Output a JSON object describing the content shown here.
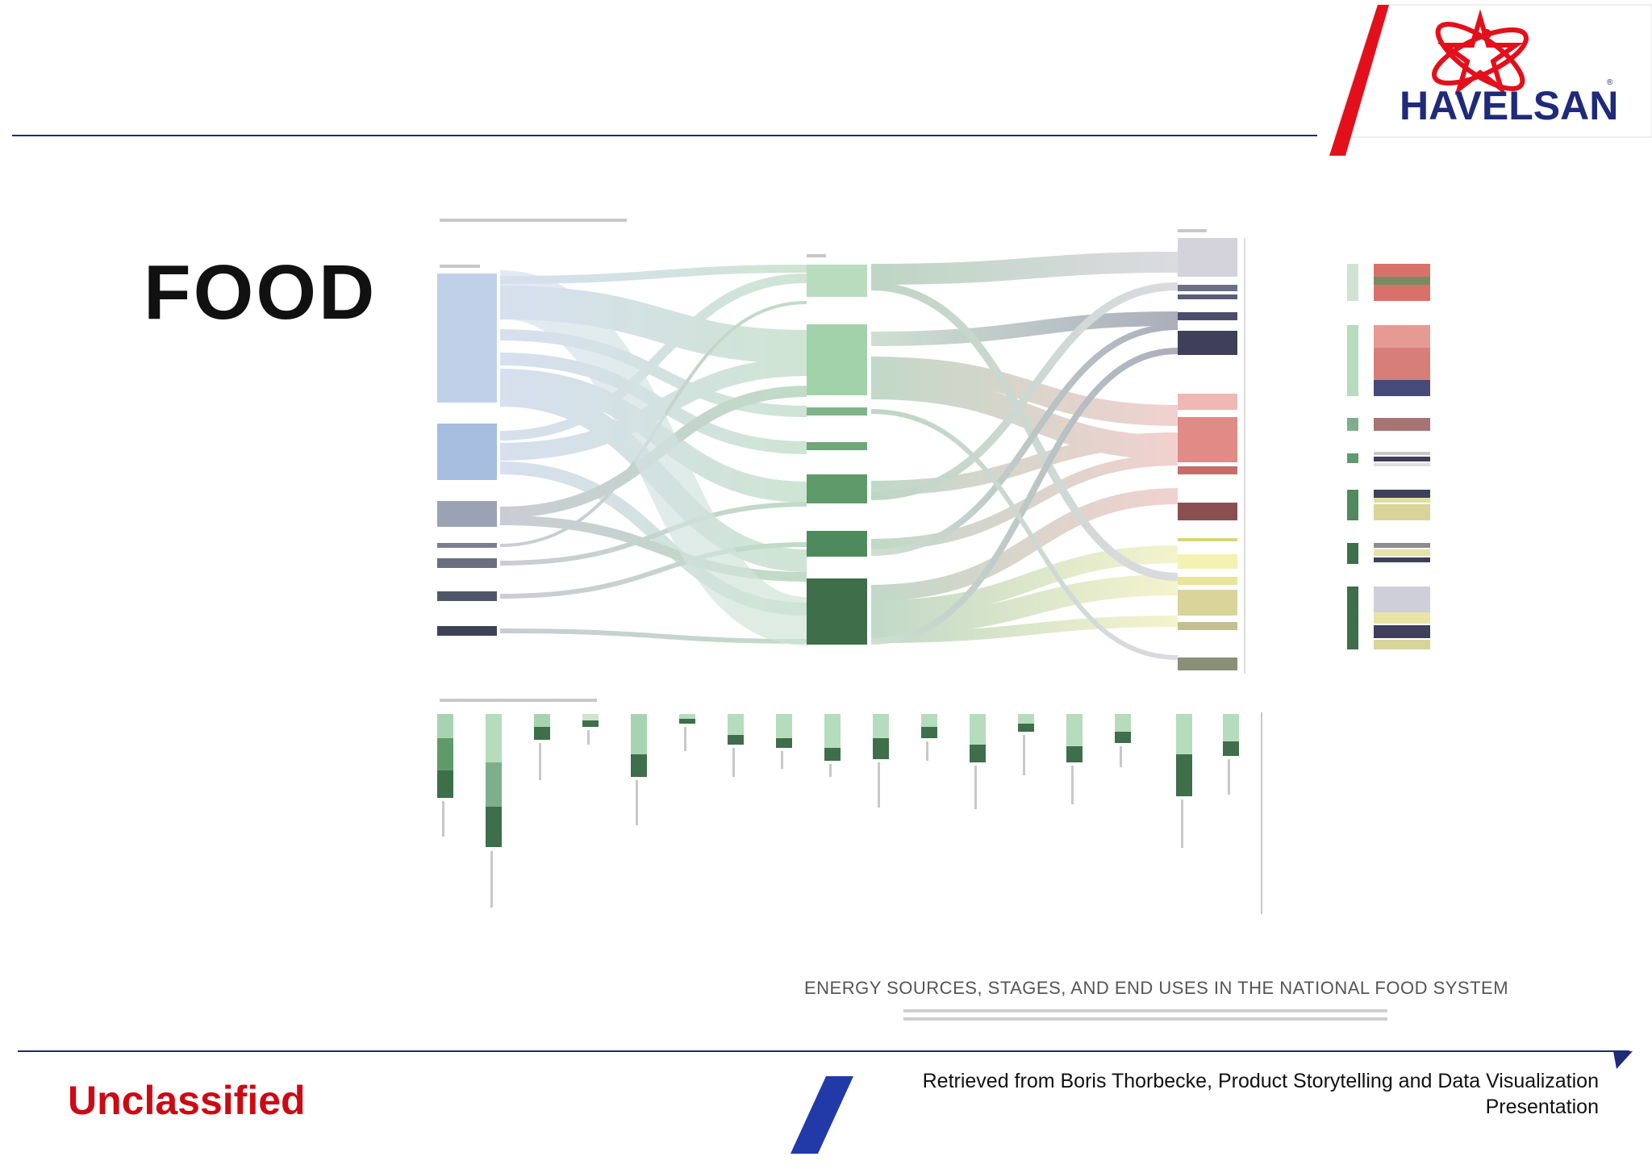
{
  "header": {
    "title": "FOOD",
    "logo_text": "HAVELSAN"
  },
  "figure": {
    "caption": "ENERGY SOURCES, STAGES, AND END USES IN THE NATIONAL FOOD SYSTEM"
  },
  "footer": {
    "classification": "Unclassified",
    "credit_line1": "Retrieved from Boris Thorbecke, Product Storytelling and Data Visualization",
    "credit_line2": "Presentation"
  },
  "colors": {
    "brand_red": "#e3101c",
    "brand_blue": "#1f2a7a",
    "rule_blue": "#1f2a7a",
    "classification_red": "#cc0a14"
  }
}
